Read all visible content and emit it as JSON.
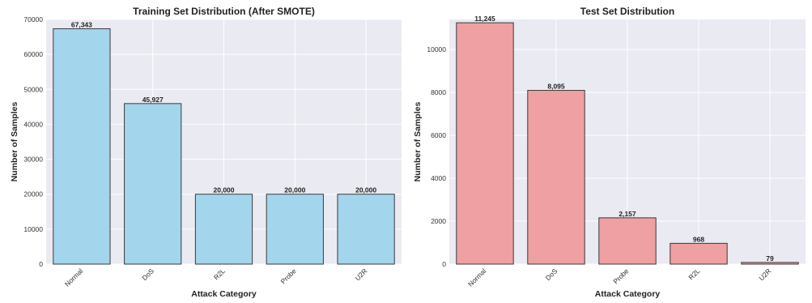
{
  "chart_data": [
    {
      "type": "bar",
      "title": "Training Set Distribution (After SMOTE)",
      "xlabel": "Attack Category",
      "ylabel": "Number of Samples",
      "categories": [
        "Normal",
        "DoS",
        "R2L",
        "Probe",
        "U2R"
      ],
      "values": [
        67343,
        45927,
        20000,
        20000,
        20000
      ],
      "data_labels": [
        "67,343",
        "45,927",
        "20,000",
        "20,000",
        "20,000"
      ],
      "ylim": [
        0,
        70000
      ],
      "yticks": [
        0,
        10000,
        20000,
        30000,
        40000,
        50000,
        60000,
        70000
      ],
      "ytick_labels": [
        "0",
        "10000",
        "20000",
        "30000",
        "40000",
        "50000",
        "60000",
        "70000"
      ],
      "bar_color": "#a3d5ec",
      "edge_color": "#3a3a3a",
      "grid": true
    },
    {
      "type": "bar",
      "title": "Test Set Distribution",
      "xlabel": "Attack Category",
      "ylabel": "Number of Samples",
      "categories": [
        "Normal",
        "DoS",
        "Probe",
        "R2L",
        "U2R"
      ],
      "values": [
        11245,
        8095,
        2157,
        968,
        79
      ],
      "data_labels": [
        "11,245",
        "8,095",
        "2,157",
        "968",
        "79"
      ],
      "ylim": [
        0,
        11400
      ],
      "yticks": [
        0,
        2000,
        4000,
        6000,
        8000,
        10000
      ],
      "ytick_labels": [
        "0",
        "2000",
        "4000",
        "6000",
        "8000",
        "10000"
      ],
      "bar_color": "#eea0a2",
      "edge_color": "#3a3a3a",
      "grid": true
    }
  ],
  "colors": {
    "plot_background": "#eaeaf2",
    "grid": "#ffffff"
  }
}
